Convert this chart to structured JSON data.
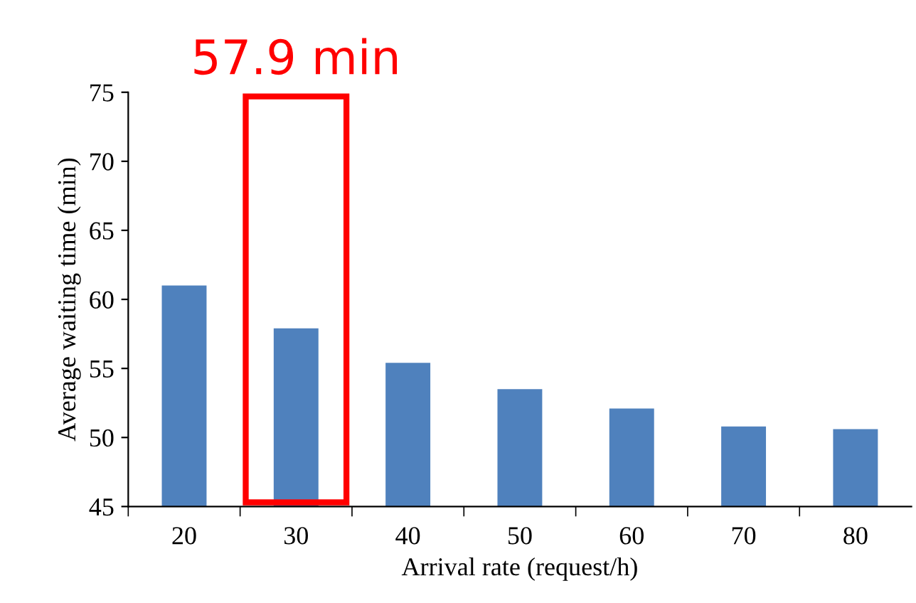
{
  "chart_data": {
    "type": "bar",
    "xlabel": "Arrival rate (request/h)",
    "ylabel": "Average waiting time (min)",
    "categories": [
      "20",
      "30",
      "40",
      "50",
      "60",
      "70",
      "80"
    ],
    "values": [
      61.0,
      57.9,
      55.4,
      53.5,
      52.1,
      50.8,
      50.6
    ],
    "color": "#4f81bd",
    "ylim": [
      45,
      75
    ],
    "yticks": [
      45,
      50,
      55,
      60,
      65,
      70,
      75
    ],
    "grid": false,
    "legend": false,
    "annotations": [
      "57.9 min"
    ]
  }
}
